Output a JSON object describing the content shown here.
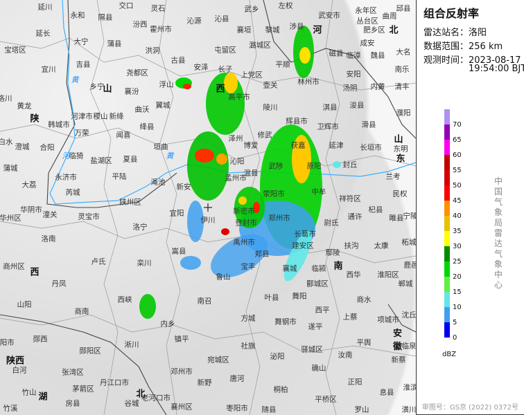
{
  "product": {
    "title": "组合反射率",
    "station_label": "雷达站名：",
    "station": "洛阳",
    "range_label": "数据范围：",
    "range": "256 km",
    "time_label": "观测时间：",
    "date": "2023-08-17",
    "time": "19:54:00 BJT"
  },
  "legend": {
    "unit": "dBZ",
    "ticks": [
      "70",
      "65",
      "60",
      "55",
      "50",
      "45",
      "40",
      "35",
      "30",
      "25",
      "20",
      "15",
      "10",
      "5",
      "0"
    ],
    "colors": [
      "#b090f0",
      "#9600b4",
      "#ff00f0",
      "#c00000",
      "#d40000",
      "#ff0000",
      "#ff9000",
      "#e8c000",
      "#ffff00",
      "#008c00",
      "#00d800",
      "#60f040",
      "#60e8e8",
      "#40a0f0",
      "#0000f0"
    ]
  },
  "agency": "中国气象局雷达气象中心",
  "approval": "审图号：GS京 (2022) 0372号",
  "map": {
    "provinces": [
      "陕",
      "山",
      "西",
      "河",
      "北",
      "南",
      "山",
      "东",
      "西",
      "陕西",
      "湖",
      "北",
      "安徽"
    ],
    "rivers": [
      "黄",
      "河",
      "黄"
    ],
    "cities": [
      "延川",
      "永和",
      "隰县",
      "交口",
      "灵石",
      "汾西",
      "霍州市",
      "沁源",
      "延长",
      "大宁",
      "蒲县",
      "宝塔区",
      "洪洞",
      "古县",
      "安泽",
      "吉县",
      "宜川",
      "尧都区",
      "乡宁",
      "浮山",
      "襄汾",
      "黄龙",
      "洛川",
      "曲沃",
      "翼城",
      "韩城市",
      "河津市",
      "稷山",
      "新绛",
      "万荣",
      "闻喜",
      "绛县",
      "白水",
      "澄城",
      "合阳",
      "垣曲",
      "临猗",
      "盐湖区",
      "夏县",
      "蒲城",
      "永济市",
      "平陆",
      "渑池",
      "大荔",
      "芮城",
      "新安",
      "陕州区",
      "武乡",
      "左权",
      "沁县",
      "武安市",
      "永年区",
      "丛台区",
      "曲周",
      "邱县",
      "襄垣",
      "黎城",
      "涉县",
      "肥乡区",
      "屯留区",
      "潞城区",
      "磁县",
      "成安",
      "临漳",
      "魏县",
      "大名",
      "长子",
      "平顺",
      "南乐",
      "上党区",
      "壶关",
      "林州市",
      "安阳",
      "汤阴",
      "内黄",
      "清丰",
      "高平市",
      "淇县",
      "浚县",
      "陵川",
      "濮阳",
      "辉县市",
      "卫辉市",
      "滑县",
      "修武",
      "获嘉",
      "延津",
      "长垣市",
      "东明",
      "博爱",
      "武陟",
      "原阳",
      "封丘",
      "温县",
      "沁阳",
      "孟州市",
      "荥阳市",
      "兰考",
      "中牟",
      "祥符区",
      "民权",
      "华阴市",
      "潼关",
      "华州区",
      "灵宝市",
      "宜阳",
      "伊川",
      "洛宁",
      "洛南",
      "嵩县",
      "卢氏",
      "栾川",
      "商州区",
      "丹凤",
      "西峡",
      "山阳",
      "商南",
      "内乡",
      "南召",
      "镇平",
      "淅川",
      "郧西",
      "旬阳市",
      "郧阳区",
      "白河",
      "邓州市",
      "张湾区",
      "丹江口市",
      "茅箭区",
      "竹山",
      "老河口市",
      "谷城",
      "房县",
      "襄州区",
      "竹溪",
      "新野",
      "新密市",
      "郑州市",
      "尉氏",
      "通许",
      "杞县",
      "睢县",
      "宁陵",
      "登封市",
      "禹州市",
      "长葛市",
      "建安区",
      "扶沟",
      "太康",
      "柘城",
      "郏县",
      "鄢陵",
      "宝丰",
      "襄城",
      "临颍",
      "西华",
      "淮阳区",
      "鹿邑",
      "鲁山",
      "郾城区",
      "郸城",
      "叶县",
      "舞阳",
      "商水",
      "西平",
      "方城",
      "舞钢市",
      "上蔡",
      "项城市",
      "沈丘",
      "遂平",
      "平舆",
      "临泉",
      "社旗",
      "驿城区",
      "汝南",
      "宛城区",
      "泌阳",
      "确山",
      "新蔡",
      "唐河",
      "正阳",
      "息县",
      "桐柏",
      "淮滨",
      "平桥区",
      "枣阳市",
      "随县",
      "罗山",
      "潢川",
      "泽州"
    ]
  }
}
